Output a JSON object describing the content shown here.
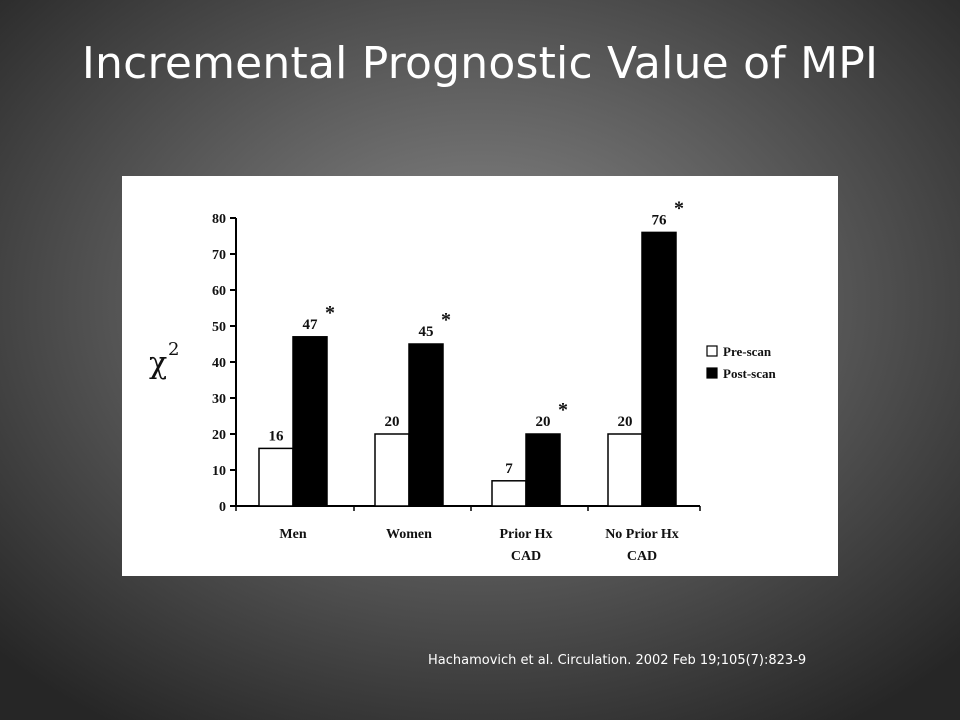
{
  "slide": {
    "title": "Incremental Prognostic Value of MPI",
    "citation": "Hachamovich et al.  Circulation. 2002 Feb 19;105(7):823-9"
  },
  "chart_data": {
    "type": "bar",
    "categories": [
      [
        "Men"
      ],
      [
        "Women"
      ],
      [
        "Prior Hx",
        "CAD"
      ],
      [
        "No Prior Hx",
        "CAD"
      ]
    ],
    "series": [
      {
        "name": "Pre-scan",
        "values": [
          16,
          20,
          7,
          20
        ],
        "labels": [
          "16",
          "20",
          "7",
          "20"
        ],
        "color": "#ffffff"
      },
      {
        "name": "Post-scan",
        "values": [
          47,
          45,
          20,
          76
        ],
        "labels": [
          "47",
          "45",
          "20",
          "76"
        ],
        "color": "#000000"
      }
    ],
    "significance_marker": "*",
    "significant": [
      true,
      true,
      true,
      true
    ],
    "ylabel": "χ",
    "ylabel_superscript": "2",
    "ylim": [
      0,
      80
    ],
    "yticks": [
      "0",
      "10",
      "20",
      "30",
      "40",
      "50",
      "60",
      "70",
      "80"
    ],
    "legend_position": "right",
    "grid": false
  }
}
